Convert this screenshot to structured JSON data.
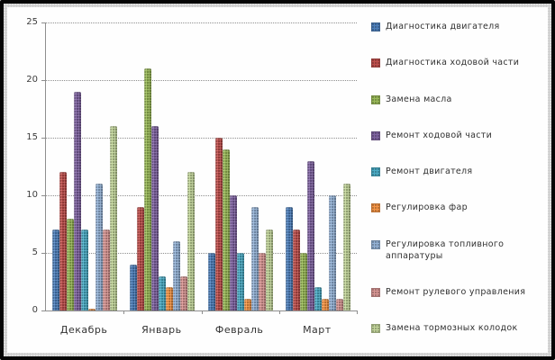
{
  "chart_data": {
    "type": "bar",
    "title": "",
    "xlabel": "",
    "ylabel": "",
    "categories": [
      "Декабрь",
      "Январь",
      "Февраль",
      "Март"
    ],
    "series": [
      {
        "name": "Диагностика двигателя",
        "color": "#4F81BD",
        "values": [
          7,
          4,
          5,
          9
        ]
      },
      {
        "name": "Диагностика ходовой части",
        "color": "#C0504D",
        "values": [
          12,
          9,
          15,
          7
        ]
      },
      {
        "name": "Замена масла",
        "color": "#9BBB59",
        "values": [
          8,
          21,
          14,
          5
        ]
      },
      {
        "name": "Ремонт ходовой части",
        "color": "#8064A2",
        "values": [
          19,
          16,
          10,
          13
        ]
      },
      {
        "name": "Ремонт двигателя",
        "color": "#4BACC6",
        "values": [
          7,
          3,
          5,
          2
        ]
      },
      {
        "name": "Регулировка фар",
        "color": "#F79646",
        "values": [
          0,
          2,
          1,
          1
        ]
      },
      {
        "name": "Регулировка топливного аппаратуры",
        "color": "#95B3D7",
        "values": [
          11,
          6,
          9,
          10
        ]
      },
      {
        "name": "Ремонт рулевого управления",
        "color": "#D99694",
        "values": [
          7,
          3,
          5,
          1
        ]
      },
      {
        "name": "Замена тормозных колодок",
        "color": "#C3D69B",
        "values": [
          16,
          12,
          7,
          11
        ]
      }
    ],
    "ylim": [
      0,
      25
    ],
    "yticks": [
      0,
      5,
      10,
      15,
      20,
      25
    ],
    "grid": true,
    "legend_position": "right",
    "frame_border_color": "#050505",
    "frame_mat_color": "#cdcdcd",
    "plot_background": "#fefefe",
    "gridline_color": "#8f8f8f"
  }
}
